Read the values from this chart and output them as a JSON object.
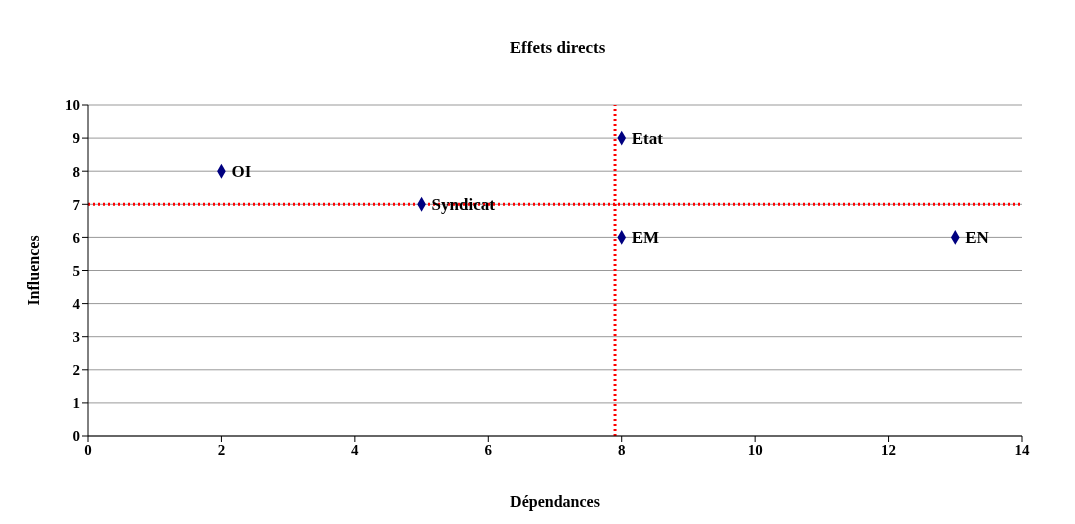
{
  "chart_data": {
    "type": "scatter",
    "title": "Effets directs",
    "xlabel": "Dépendances",
    "ylabel": "Influences",
    "x": [
      2,
      5,
      8,
      8,
      13
    ],
    "series": [
      {
        "color": "#000080",
        "values": [
          8,
          7,
          9,
          6,
          6
        ]
      }
    ],
    "xlim": [
      0,
      14
    ],
    "xticks": [
      0,
      2,
      4,
      6,
      8,
      10,
      12,
      14
    ],
    "ylim": [
      0,
      10
    ],
    "yticks": [
      0,
      1,
      2,
      3,
      4,
      5,
      6,
      7,
      8,
      9,
      10
    ],
    "grid": "y",
    "legend": false,
    "marker": "diamond",
    "ref_lines": [
      {
        "axis": "x",
        "value": 7.9,
        "color": "#ff0000",
        "line_style": "dotted"
      },
      {
        "axis": "y",
        "value": 7,
        "color": "#ff0000",
        "line_style": "dotted"
      }
    ],
    "annotations": [
      {
        "text": "OI",
        "x": 2,
        "y": 8
      },
      {
        "text": "Syndicat",
        "x": 5,
        "y": 7
      },
      {
        "text": "Etat",
        "x": 8,
        "y": 9
      },
      {
        "text": "EM",
        "x": 8,
        "y": 6
      },
      {
        "text": "EN",
        "x": 13,
        "y": 6
      }
    ]
  }
}
